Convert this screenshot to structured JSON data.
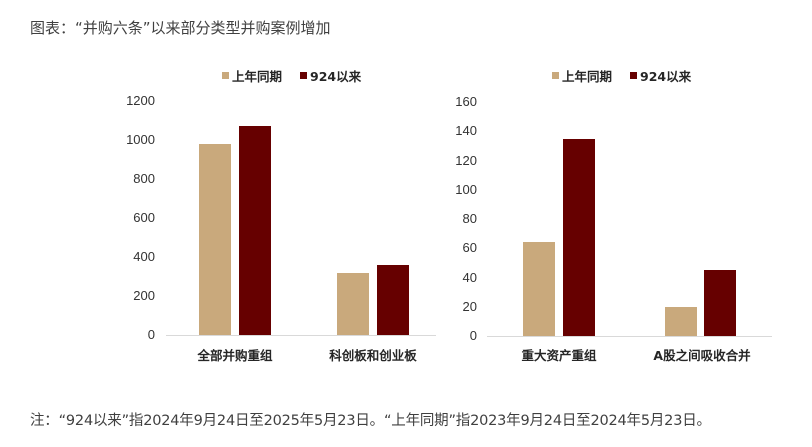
{
  "title": "图表：“并购六条”以来部分类型并购案例增加",
  "note": "注：“924以来”指2024年9月24日至2025年5月23日。“上年同期”指2023年9月24日至2024年5月23日。",
  "colors": {
    "prior_year": "#C9A97C",
    "since_924": "#660000"
  },
  "chart_data": [
    {
      "type": "bar",
      "title": "",
      "categories": [
        "全部并购重组",
        "科创板和创业板"
      ],
      "series": [
        {
          "name": "上年同期",
          "values": [
            980,
            318
          ]
        },
        {
          "name": "924以来",
          "values": [
            1072,
            359
          ]
        }
      ],
      "yticks": [
        "0",
        "200",
        "400",
        "600",
        "800",
        "1000",
        "1200"
      ],
      "ylim": [
        0,
        1200
      ],
      "xlabel": "",
      "ylabel": "",
      "grid": false,
      "legend_position": "top"
    },
    {
      "type": "bar",
      "title": "",
      "categories": [
        "重大资产重组",
        "A股之间吸收合并"
      ],
      "series": [
        {
          "name": "上年同期",
          "values": [
            64,
            20
          ]
        },
        {
          "name": "924以来",
          "values": [
            135,
            45
          ]
        }
      ],
      "yticks": [
        "0",
        "20",
        "40",
        "60",
        "80",
        "100",
        "120",
        "140",
        "160"
      ],
      "ylim": [
        0,
        160
      ],
      "xlabel": "",
      "ylabel": "",
      "grid": false,
      "legend_position": "top"
    }
  ]
}
